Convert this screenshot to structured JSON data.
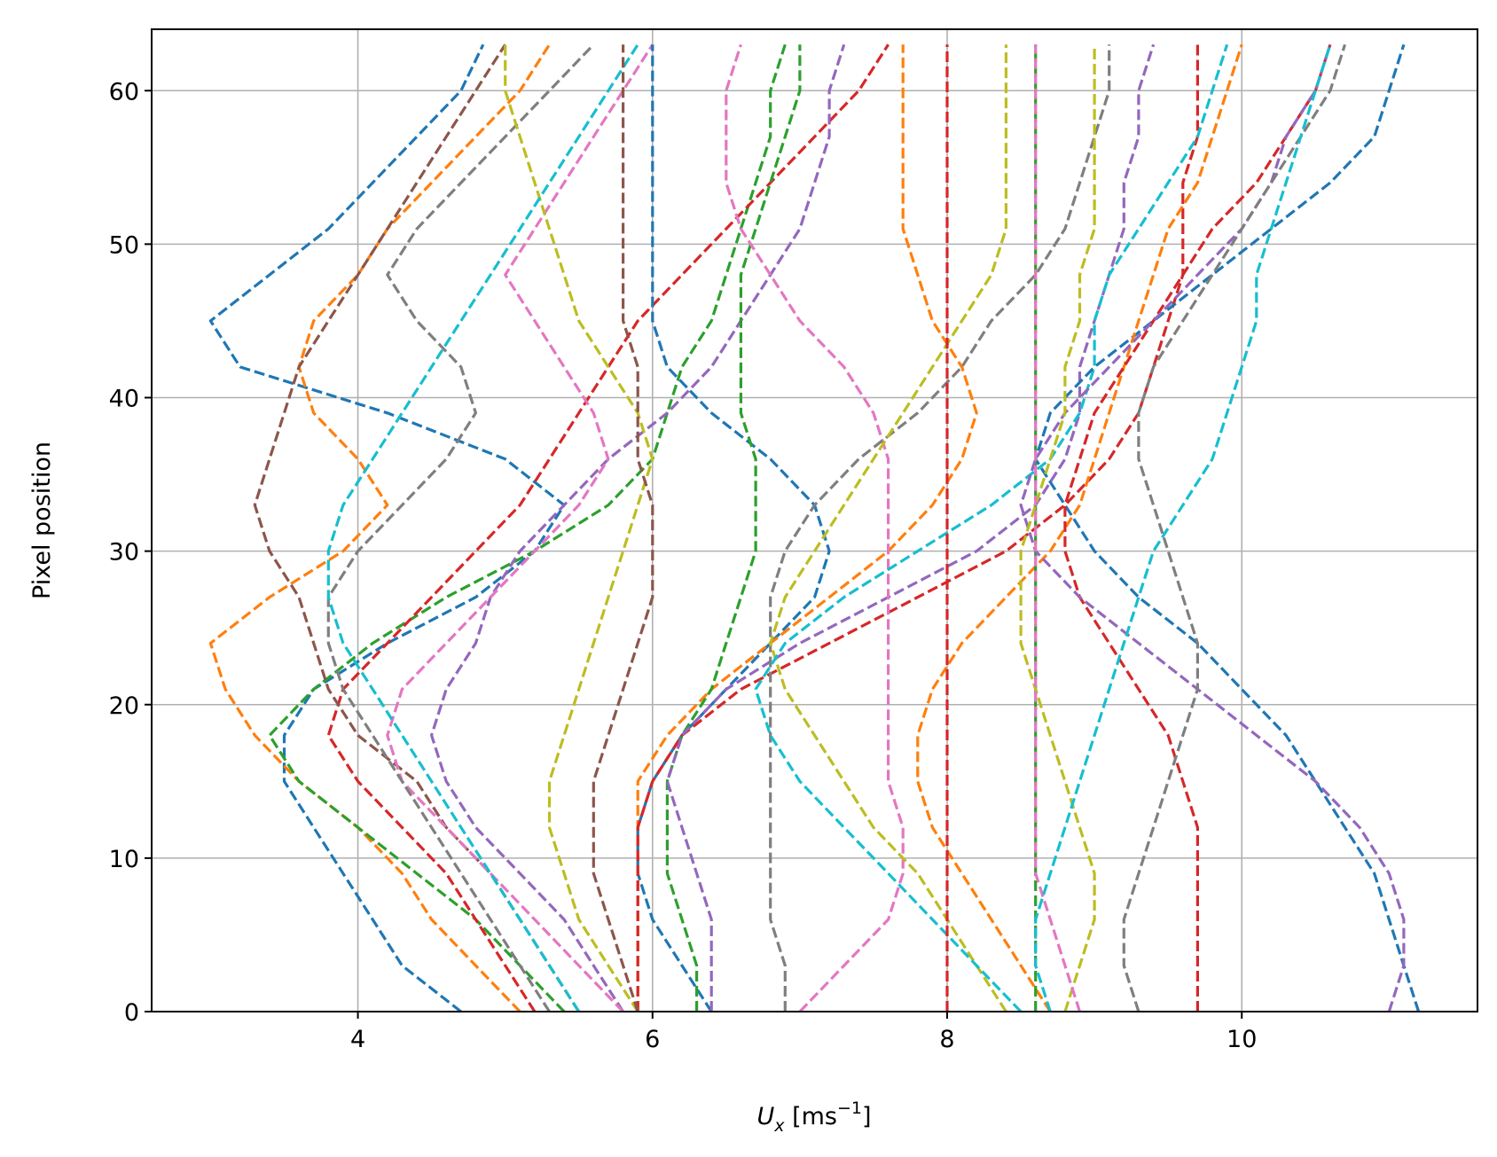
{
  "chart_data": {
    "type": "line",
    "title": "",
    "xlabel": {
      "base": "U",
      "sub": "x",
      "unit_prefix": " [ms",
      "sup": "−1",
      "unit_suffix": "]"
    },
    "ylabel": "Pixel position",
    "xlim": [
      2.6,
      11.6
    ],
    "ylim": [
      0,
      64
    ],
    "xticks": [
      4,
      6,
      8,
      10
    ],
    "yticks": [
      0,
      10,
      20,
      30,
      40,
      50,
      60
    ],
    "grid": true,
    "line_style": "dashed",
    "y": [
      0,
      3,
      6,
      9,
      12,
      15,
      18,
      21,
      24,
      27,
      30,
      33,
      36,
      39,
      42,
      45,
      48,
      51,
      54,
      57,
      60,
      63
    ],
    "series": [
      {
        "color": "#1f77b4",
        "x": [
          4.7,
          4.3,
          4.1,
          3.9,
          3.7,
          3.5,
          3.5,
          3.7,
          4.2,
          4.8,
          5.2,
          5.4,
          5.0,
          4.2,
          3.2,
          3.0,
          3.4,
          3.8,
          4.1,
          4.4,
          4.7,
          4.85
        ]
      },
      {
        "color": "#ff7f0e",
        "x": [
          5.1,
          4.8,
          4.5,
          4.3,
          4.0,
          3.6,
          3.3,
          3.1,
          3.0,
          3.4,
          3.9,
          4.2,
          4.0,
          3.7,
          3.6,
          3.7,
          4.0,
          4.2,
          4.5,
          4.8,
          5.1,
          5.3
        ]
      },
      {
        "color": "#2ca02c",
        "x": [
          5.4,
          5.1,
          4.8,
          4.4,
          4.0,
          3.6,
          3.4,
          3.7,
          4.1,
          4.6,
          5.2,
          5.7,
          6.0,
          6.1,
          6.2,
          6.4,
          6.5,
          6.6,
          6.7,
          6.8,
          6.8,
          6.9
        ]
      },
      {
        "color": "#d62728",
        "x": [
          5.2,
          5.0,
          4.8,
          4.6,
          4.3,
          4.0,
          3.8,
          3.9,
          4.2,
          4.5,
          4.8,
          5.1,
          5.3,
          5.5,
          5.7,
          5.9,
          6.2,
          6.5,
          6.8,
          7.1,
          7.4,
          7.6
        ]
      },
      {
        "color": "#9467bd",
        "x": [
          5.8,
          5.6,
          5.4,
          5.1,
          4.8,
          4.6,
          4.5,
          4.6,
          4.8,
          4.9,
          5.1,
          5.4,
          5.7,
          6.1,
          6.4,
          6.6,
          6.8,
          7.0,
          7.1,
          7.2,
          7.2,
          7.3
        ]
      },
      {
        "color": "#8c564b",
        "x": [
          5.5,
          5.3,
          5.1,
          4.9,
          4.6,
          4.4,
          4.0,
          3.8,
          3.7,
          3.6,
          3.4,
          3.3,
          3.4,
          3.5,
          3.6,
          3.8,
          4.0,
          4.2,
          4.4,
          4.6,
          4.8,
          5.0
        ]
      },
      {
        "color": "#e377c2",
        "x": [
          5.8,
          5.5,
          5.2,
          4.9,
          4.6,
          4.3,
          4.2,
          4.3,
          4.6,
          4.9,
          5.2,
          5.5,
          5.7,
          5.6,
          5.4,
          5.2,
          5.0,
          5.2,
          5.4,
          5.6,
          5.8,
          6.0
        ]
      },
      {
        "color": "#7f7f7f",
        "x": [
          5.3,
          5.1,
          4.9,
          4.7,
          4.5,
          4.3,
          4.1,
          3.9,
          3.8,
          3.8,
          4.0,
          4.3,
          4.6,
          4.8,
          4.7,
          4.4,
          4.2,
          4.4,
          4.7,
          5.0,
          5.3,
          5.6
        ]
      },
      {
        "color": "#bcbd22",
        "x": [
          5.9,
          5.7,
          5.5,
          5.4,
          5.3,
          5.3,
          5.4,
          5.5,
          5.6,
          5.7,
          5.8,
          5.9,
          6.0,
          5.9,
          5.7,
          5.5,
          5.4,
          5.3,
          5.2,
          5.1,
          5.0,
          5.0
        ]
      },
      {
        "color": "#17becf",
        "x": [
          5.5,
          5.3,
          5.1,
          4.9,
          4.7,
          4.5,
          4.3,
          4.1,
          3.9,
          3.8,
          3.8,
          3.9,
          4.1,
          4.3,
          4.5,
          4.7,
          4.9,
          5.1,
          5.3,
          5.5,
          5.7,
          5.9
        ]
      },
      {
        "color": "#1f77b4",
        "x": [
          6.4,
          6.2,
          6.0,
          5.9,
          5.9,
          6.0,
          6.2,
          6.5,
          6.8,
          7.1,
          7.2,
          7.1,
          6.8,
          6.4,
          6.1,
          6.0,
          6.0,
          6.0,
          6.0,
          6.0,
          6.0,
          6.0
        ]
      },
      {
        "color": "#ff7f0e",
        "x": [
          5.9,
          5.9,
          5.9,
          5.9,
          5.9,
          5.9,
          6.1,
          6.4,
          6.8,
          7.2,
          7.6,
          7.9,
          8.1,
          8.2,
          8.1,
          7.9,
          7.8,
          7.7,
          7.7,
          7.7,
          7.7,
          7.7
        ]
      },
      {
        "color": "#2ca02c",
        "x": [
          6.3,
          6.3,
          6.2,
          6.1,
          6.1,
          6.1,
          6.2,
          6.4,
          6.5,
          6.6,
          6.7,
          6.7,
          6.7,
          6.6,
          6.6,
          6.6,
          6.6,
          6.7,
          6.8,
          6.9,
          7.0,
          7.0
        ]
      },
      {
        "color": "#d62728",
        "x": [
          5.9,
          5.9,
          5.9,
          5.9,
          5.9,
          6.0,
          6.2,
          6.6,
          7.2,
          7.8,
          8.4,
          8.8,
          9.1,
          9.3,
          9.4,
          9.5,
          9.6,
          9.6,
          9.6,
          9.7,
          9.7,
          9.7
        ]
      },
      {
        "color": "#9467bd",
        "x": [
          6.4,
          6.4,
          6.4,
          6.3,
          6.2,
          6.1,
          6.2,
          6.5,
          7.0,
          7.6,
          8.2,
          8.6,
          8.8,
          8.9,
          8.9,
          9.0,
          9.1,
          9.2,
          9.2,
          9.3,
          9.3,
          9.4
        ]
      },
      {
        "color": "#8c564b",
        "x": [
          5.9,
          5.8,
          5.7,
          5.6,
          5.6,
          5.6,
          5.7,
          5.8,
          5.9,
          6.0,
          6.0,
          6.0,
          5.9,
          5.9,
          5.9,
          5.8,
          5.8,
          5.8,
          5.8,
          5.8,
          5.8,
          5.8
        ]
      },
      {
        "color": "#e377c2",
        "x": [
          7.0,
          7.3,
          7.6,
          7.7,
          7.7,
          7.6,
          7.6,
          7.6,
          7.6,
          7.6,
          7.6,
          7.6,
          7.6,
          7.5,
          7.3,
          7.0,
          6.8,
          6.6,
          6.5,
          6.5,
          6.5,
          6.6
        ]
      },
      {
        "color": "#7f7f7f",
        "x": [
          6.9,
          6.9,
          6.8,
          6.8,
          6.8,
          6.8,
          6.8,
          6.8,
          6.8,
          6.8,
          6.9,
          7.1,
          7.4,
          7.8,
          8.1,
          8.3,
          8.6,
          8.8,
          8.9,
          9.0,
          9.1,
          9.1
        ]
      },
      {
        "color": "#bcbd22",
        "x": [
          8.4,
          8.2,
          8.0,
          7.8,
          7.5,
          7.3,
          7.1,
          6.9,
          6.8,
          6.9,
          7.1,
          7.3,
          7.5,
          7.7,
          7.9,
          8.1,
          8.3,
          8.4,
          8.4,
          8.4,
          8.4,
          8.4
        ]
      },
      {
        "color": "#17becf",
        "x": [
          8.5,
          8.2,
          7.9,
          7.6,
          7.3,
          7.0,
          6.8,
          6.7,
          6.9,
          7.3,
          7.8,
          8.3,
          8.7,
          8.9,
          9.0,
          9.0,
          9.1,
          9.3,
          9.5,
          9.7,
          9.8,
          9.9
        ]
      },
      {
        "color": "#1f77b4",
        "x": [
          11.2,
          11.1,
          11.0,
          10.9,
          10.7,
          10.5,
          10.3,
          10.0,
          9.7,
          9.3,
          9.0,
          8.8,
          8.6,
          8.7,
          9.0,
          9.4,
          9.8,
          10.2,
          10.6,
          10.9,
          11.0,
          11.1
        ]
      },
      {
        "color": "#ff7f0e",
        "x": [
          8.7,
          8.5,
          8.3,
          8.1,
          7.9,
          7.8,
          7.8,
          7.9,
          8.1,
          8.4,
          8.7,
          8.9,
          9.0,
          9.1,
          9.2,
          9.3,
          9.4,
          9.5,
          9.7,
          9.8,
          9.9,
          10.0
        ]
      },
      {
        "color": "#2ca02c",
        "x": [
          8.6,
          8.6,
          8.6,
          8.6,
          8.6,
          8.6,
          8.6,
          8.6,
          8.6,
          8.6,
          8.6,
          8.6,
          8.6,
          8.6,
          8.6,
          8.6,
          8.6,
          8.6,
          8.6,
          8.6,
          8.6,
          8.6
        ]
      },
      {
        "color": "#d62728",
        "x": [
          9.7,
          9.7,
          9.7,
          9.7,
          9.7,
          9.6,
          9.5,
          9.3,
          9.1,
          8.9,
          8.8,
          8.8,
          8.9,
          9.0,
          9.2,
          9.4,
          9.6,
          9.8,
          10.1,
          10.3,
          10.5,
          10.6
        ]
      },
      {
        "color": "#9467bd",
        "x": [
          11.0,
          11.1,
          11.1,
          11.0,
          10.8,
          10.5,
          10.1,
          9.7,
          9.3,
          8.9,
          8.6,
          8.5,
          8.6,
          8.8,
          9.1,
          9.4,
          9.7,
          10.0,
          10.2,
          10.3,
          10.5,
          10.6
        ]
      },
      {
        "color": "#7f7f7f",
        "x": [
          9.3,
          9.2,
          9.2,
          9.3,
          9.4,
          9.5,
          9.6,
          9.7,
          9.7,
          9.6,
          9.5,
          9.4,
          9.3,
          9.3,
          9.4,
          9.6,
          9.8,
          10.0,
          10.2,
          10.4,
          10.6,
          10.7
        ]
      },
      {
        "color": "#bcbd22",
        "x": [
          8.8,
          8.9,
          9.0,
          9.0,
          8.9,
          8.8,
          8.7,
          8.6,
          8.5,
          8.5,
          8.5,
          8.6,
          8.7,
          8.8,
          8.8,
          8.9,
          8.9,
          9.0,
          9.0,
          9.0,
          9.0,
          9.0
        ]
      },
      {
        "color": "#e377c2",
        "x": [
          8.9,
          8.8,
          8.7,
          8.6,
          8.6,
          8.6,
          8.6,
          8.6,
          8.6,
          8.6,
          8.6,
          8.6,
          8.6,
          8.6,
          8.6,
          8.6,
          8.6,
          8.6,
          8.6,
          8.6,
          8.6,
          8.6
        ]
      },
      {
        "color": "#17becf",
        "x": [
          8.7,
          8.6,
          8.6,
          8.7,
          8.8,
          8.9,
          9.0,
          9.1,
          9.2,
          9.3,
          9.4,
          9.6,
          9.8,
          9.9,
          10.0,
          10.1,
          10.1,
          10.2,
          10.3,
          10.4,
          10.5,
          10.6
        ]
      },
      {
        "color": "#d62728",
        "x": [
          8.0,
          8.0,
          8.0,
          8.0,
          8.0,
          8.0,
          8.0,
          8.0,
          8.0,
          8.0,
          8.0,
          8.0,
          8.0,
          8.0,
          8.0,
          8.0,
          8.0,
          8.0,
          8.0,
          8.0,
          8.0,
          8.0
        ]
      }
    ]
  }
}
